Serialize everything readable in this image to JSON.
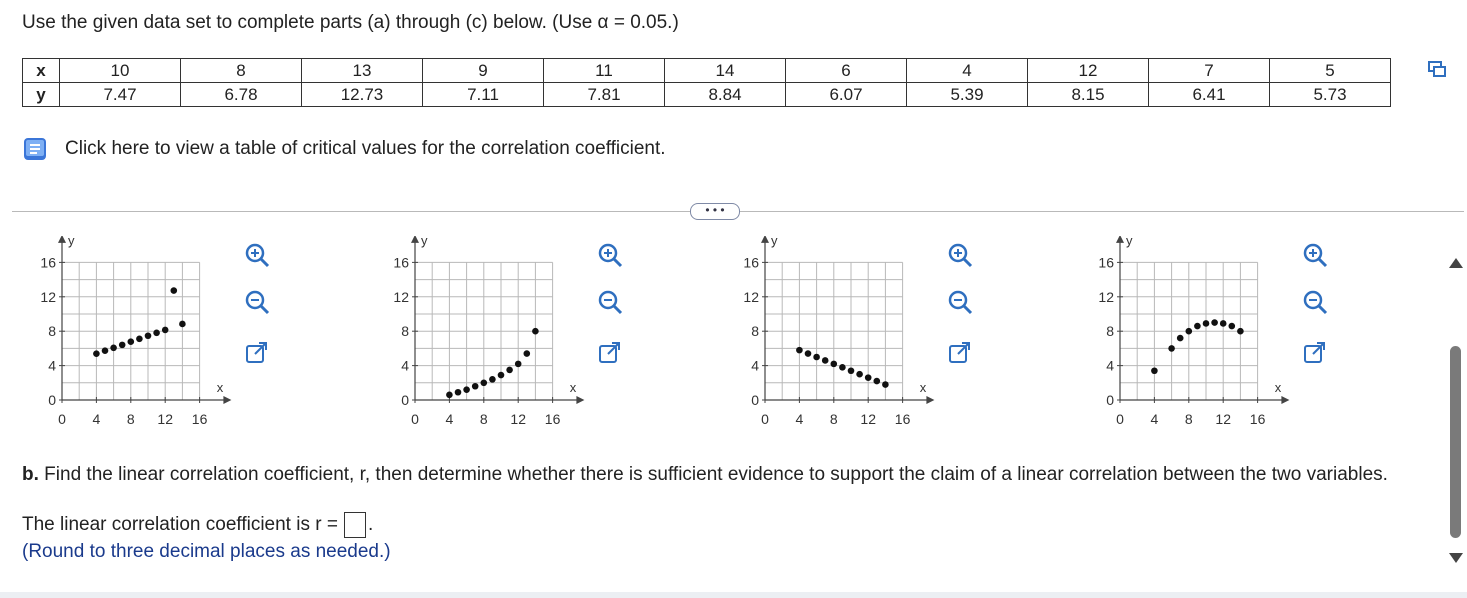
{
  "instructions": "Use the given data set to complete parts (a) through (c) below. (Use α = 0.05.)",
  "table": {
    "x_label": "x",
    "y_label": "y",
    "x": [
      "10",
      "8",
      "13",
      "9",
      "11",
      "14",
      "6",
      "4",
      "12",
      "7",
      "5"
    ],
    "y": [
      "7.47",
      "6.78",
      "12.73",
      "7.11",
      "7.81",
      "8.84",
      "6.07",
      "5.39",
      "8.15",
      "6.41",
      "5.73"
    ]
  },
  "critical_link_text": "Click here to view a table of critical values for the correlation coefficient.",
  "more_button": "• • •",
  "plots": {
    "x_ticks": [
      "0",
      "4",
      "8",
      "12",
      "16"
    ],
    "y_ticks": [
      "0",
      "4",
      "8",
      "12",
      "16"
    ],
    "x_axis_label": "x",
    "y_axis_label": "y",
    "options": [
      {
        "points": [
          [
            4,
            5.39
          ],
          [
            5,
            5.73
          ],
          [
            6,
            6.07
          ],
          [
            7,
            6.41
          ],
          [
            8,
            6.78
          ],
          [
            9,
            7.11
          ],
          [
            10,
            7.47
          ],
          [
            11,
            7.81
          ],
          [
            12,
            8.15
          ],
          [
            13,
            12.73
          ],
          [
            14,
            8.84
          ]
        ]
      },
      {
        "points": [
          [
            4,
            0.6
          ],
          [
            5,
            0.9
          ],
          [
            6,
            1.2
          ],
          [
            7,
            1.6
          ],
          [
            8,
            2.0
          ],
          [
            9,
            2.4
          ],
          [
            10,
            2.9
          ],
          [
            11,
            3.5
          ],
          [
            12,
            4.2
          ],
          [
            13,
            5.4
          ],
          [
            14,
            8.0
          ]
        ]
      },
      {
        "points": [
          [
            4,
            5.8
          ],
          [
            5,
            5.4
          ],
          [
            6,
            5.0
          ],
          [
            7,
            4.6
          ],
          [
            8,
            4.2
          ],
          [
            9,
            3.8
          ],
          [
            10,
            3.4
          ],
          [
            11,
            3.0
          ],
          [
            12,
            2.6
          ],
          [
            13,
            2.2
          ],
          [
            14,
            1.8
          ]
        ]
      },
      {
        "points": [
          [
            4,
            3.4
          ],
          [
            6,
            6.0
          ],
          [
            7,
            7.2
          ],
          [
            8,
            8.0
          ],
          [
            9,
            8.6
          ],
          [
            10,
            8.9
          ],
          [
            11,
            9.0
          ],
          [
            12,
            8.9
          ],
          [
            13,
            8.6
          ],
          [
            14,
            8.0
          ]
        ]
      }
    ]
  },
  "part_b": {
    "label": "b.",
    "text": " Find the linear correlation coefficient, r, then determine whether there is sufficient evidence to support the claim of a linear correlation between the two variables."
  },
  "answer_prefix": "The linear correlation coefficient is r =",
  "answer_suffix": ".",
  "hint": "(Round to three decimal places as needed.)",
  "colors": {
    "accent": "#2f6fbf",
    "hint": "#1a3a8c"
  }
}
